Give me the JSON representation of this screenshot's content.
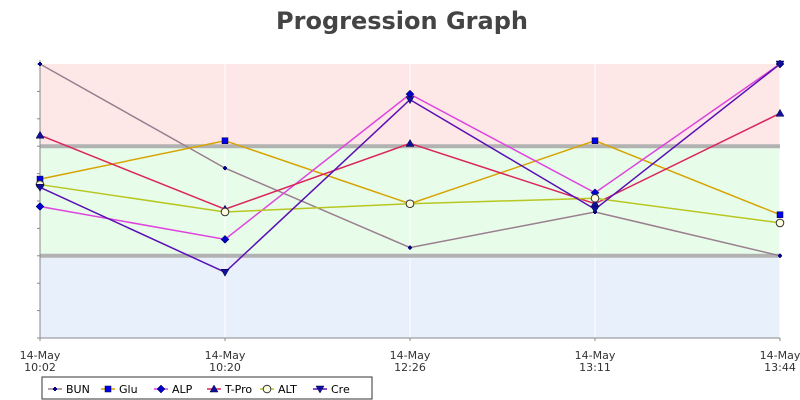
{
  "chart_data": {
    "type": "line",
    "title": "Progression Graph",
    "xlabel": "",
    "ylabel": "",
    "categories": [
      [
        "14-May",
        "10:02"
      ],
      [
        "14-May",
        "10:20"
      ],
      [
        "14-May",
        "12:26"
      ],
      [
        "14-May",
        "13:11"
      ],
      [
        "14-May",
        "13:44"
      ]
    ],
    "ylim": [
      0,
      10
    ],
    "y_tick_count": 10,
    "y_tick_labels_shown": false,
    "bands": [
      {
        "from": 0,
        "to": 3,
        "color": "#e8f0fc"
      },
      {
        "from": 3,
        "to": 7,
        "color": "#e8fcea"
      },
      {
        "from": 7,
        "to": 10,
        "color": "#fde7e7"
      }
    ],
    "thresholds": [
      3,
      7
    ],
    "threshold_color": "#b2b2b2",
    "grid": true,
    "legend_position": "bottom",
    "series": [
      {
        "name": "BUN",
        "color": "#9a7f8e",
        "marker": "plus",
        "values": [
          10.0,
          6.2,
          3.3,
          4.6,
          3.0
        ]
      },
      {
        "name": "Glu",
        "color": "#d6a400",
        "marker": "square",
        "values": [
          5.8,
          7.2,
          4.9,
          7.2,
          4.5
        ]
      },
      {
        "name": "ALP",
        "color": "#de44de",
        "marker": "diamond",
        "values": [
          4.8,
          3.6,
          8.9,
          5.3,
          10.0
        ]
      },
      {
        "name": "T-Pro",
        "color": "#d9265c",
        "marker": "triangle",
        "values": [
          7.4,
          4.7,
          7.1,
          4.9,
          8.2
        ]
      },
      {
        "name": "ALT",
        "color": "#b8c622",
        "marker": "circle",
        "values": [
          5.6,
          4.6,
          4.9,
          5.1,
          4.2
        ]
      },
      {
        "name": "Cre",
        "color": "#5a10b4",
        "marker": "triangle-down",
        "values": [
          5.5,
          2.4,
          8.7,
          4.7,
          10.0
        ]
      }
    ]
  }
}
